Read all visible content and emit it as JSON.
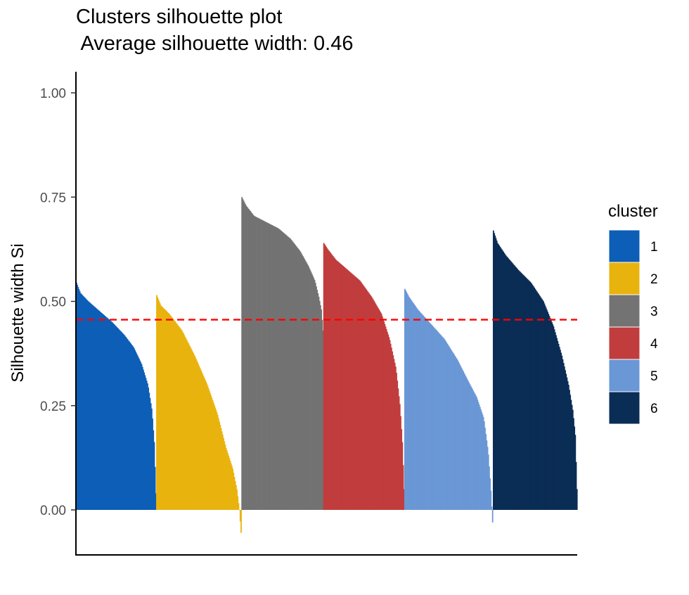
{
  "chart_data": {
    "type": "bar",
    "title_line1": "Clusters silhouette plot",
    "title_line2": " Average silhouette width: 0.46",
    "xlabel": "",
    "ylabel": "Silhouette width Si",
    "ylim": [
      -0.11,
      1.05
    ],
    "y_ticks": [
      0.0,
      0.25,
      0.5,
      0.75,
      1.0
    ],
    "y_tick_labels": [
      "0.00",
      "0.25",
      "0.50",
      "0.75",
      "1.00"
    ],
    "average_line": {
      "value": 0.456,
      "color": "#ff0000",
      "style": "dashed"
    },
    "legend": {
      "title": "cluster",
      "position": "right"
    },
    "grid": false,
    "clusters": [
      {
        "name": "1",
        "color": "#0d5eb6",
        "size": 96,
        "profile": [
          [
            0,
            0.545
          ],
          [
            0.05,
            0.52
          ],
          [
            0.15,
            0.5
          ],
          [
            0.3,
            0.475
          ],
          [
            0.45,
            0.45
          ],
          [
            0.6,
            0.42
          ],
          [
            0.72,
            0.39
          ],
          [
            0.82,
            0.35
          ],
          [
            0.9,
            0.3
          ],
          [
            0.95,
            0.24
          ],
          [
            0.98,
            0.16
          ],
          [
            1,
            0.04
          ]
        ]
      },
      {
        "name": "2",
        "color": "#e9b30e",
        "size": 102,
        "profile": [
          [
            0,
            0.515
          ],
          [
            0.05,
            0.49
          ],
          [
            0.15,
            0.47
          ],
          [
            0.3,
            0.43
          ],
          [
            0.45,
            0.37
          ],
          [
            0.6,
            0.3
          ],
          [
            0.72,
            0.23
          ],
          [
            0.82,
            0.15
          ],
          [
            0.9,
            0.1
          ],
          [
            0.95,
            0.05
          ],
          [
            0.98,
            0.0
          ],
          [
            1,
            -0.055
          ]
        ]
      },
      {
        "name": "3",
        "color": "#737373",
        "size": 98,
        "profile": [
          [
            0,
            0.75
          ],
          [
            0.05,
            0.73
          ],
          [
            0.15,
            0.705
          ],
          [
            0.3,
            0.69
          ],
          [
            0.45,
            0.675
          ],
          [
            0.6,
            0.65
          ],
          [
            0.72,
            0.62
          ],
          [
            0.82,
            0.585
          ],
          [
            0.9,
            0.55
          ],
          [
            0.95,
            0.51
          ],
          [
            0.98,
            0.48
          ],
          [
            1,
            0.43
          ]
        ]
      },
      {
        "name": "4",
        "color": "#c13d3d",
        "size": 97,
        "profile": [
          [
            0,
            0.64
          ],
          [
            0.05,
            0.625
          ],
          [
            0.15,
            0.6
          ],
          [
            0.3,
            0.575
          ],
          [
            0.45,
            0.55
          ],
          [
            0.6,
            0.51
          ],
          [
            0.72,
            0.47
          ],
          [
            0.82,
            0.41
          ],
          [
            0.9,
            0.34
          ],
          [
            0.95,
            0.25
          ],
          [
            0.98,
            0.16
          ],
          [
            1,
            0.05
          ]
        ]
      },
      {
        "name": "5",
        "color": "#6a97d5",
        "size": 106,
        "profile": [
          [
            0,
            0.53
          ],
          [
            0.05,
            0.51
          ],
          [
            0.15,
            0.48
          ],
          [
            0.3,
            0.445
          ],
          [
            0.45,
            0.41
          ],
          [
            0.6,
            0.36
          ],
          [
            0.72,
            0.31
          ],
          [
            0.82,
            0.27
          ],
          [
            0.9,
            0.22
          ],
          [
            0.95,
            0.14
          ],
          [
            0.98,
            0.05
          ],
          [
            1,
            -0.03
          ]
        ]
      },
      {
        "name": "6",
        "color": "#0a2d55",
        "size": 101,
        "profile": [
          [
            0,
            0.67
          ],
          [
            0.05,
            0.64
          ],
          [
            0.15,
            0.61
          ],
          [
            0.3,
            0.575
          ],
          [
            0.45,
            0.545
          ],
          [
            0.6,
            0.5
          ],
          [
            0.72,
            0.44
          ],
          [
            0.82,
            0.37
          ],
          [
            0.9,
            0.3
          ],
          [
            0.95,
            0.24
          ],
          [
            0.98,
            0.18
          ],
          [
            1,
            0.05
          ]
        ]
      }
    ]
  }
}
